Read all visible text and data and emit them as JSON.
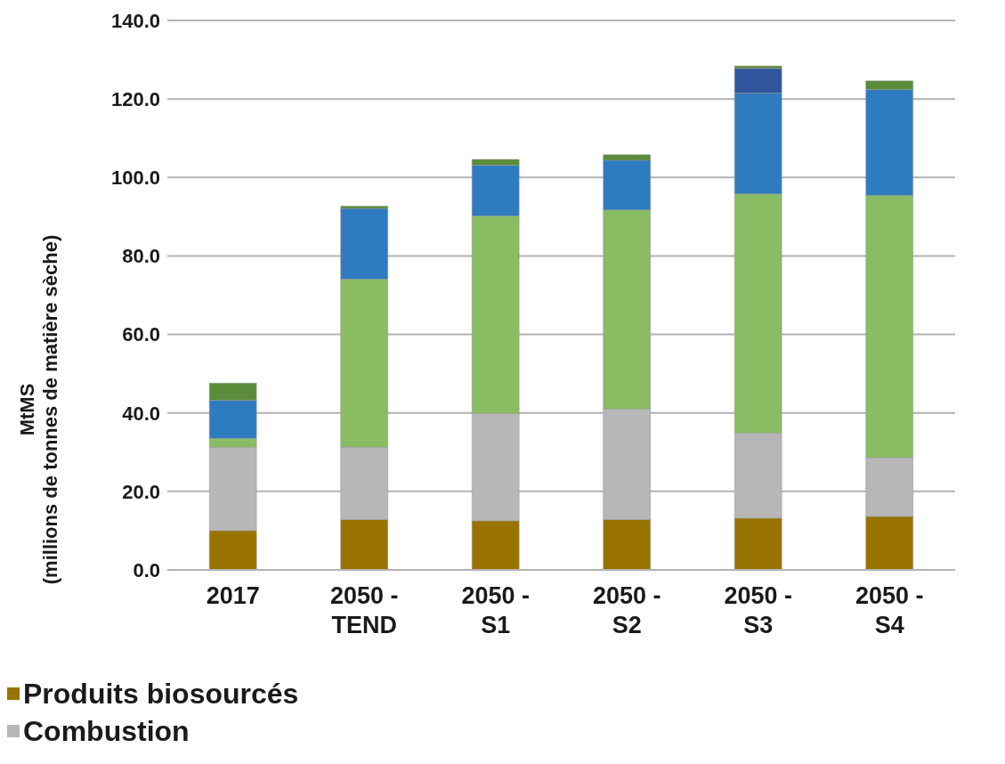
{
  "chart_data": {
    "type": "bar",
    "stacked": true,
    "ylabel": "MtMS\n(millions de tonnes de matière sèche)",
    "categories": [
      "2017",
      "2050 - TEND",
      "2050 - S1",
      "2050 - S2",
      "2050 - S3",
      "2050 - S4"
    ],
    "series": [
      {
        "name": "Produits biosourcés",
        "color": "#997300",
        "values": [
          10.0,
          12.8,
          12.5,
          12.8,
          13.2,
          13.6
        ]
      },
      {
        "name": "Combustion",
        "color": "#b7b7b7",
        "values": [
          21.3,
          18.5,
          27.4,
          28.2,
          21.7,
          15.0
        ]
      },
      {
        "color": "#8abd63",
        "values": [
          2.2,
          42.8,
          50.3,
          50.7,
          60.9,
          66.8
        ]
      },
      {
        "color": "#2e7bc0",
        "values": [
          9.7,
          18.0,
          12.9,
          12.7,
          25.7,
          27.0
        ]
      },
      {
        "color": "#30559c",
        "values": [
          0,
          0,
          0,
          0,
          6.3,
          0
        ]
      },
      {
        "color": "#5b8c3a",
        "values": [
          4.4,
          0.6,
          1.5,
          1.4,
          0.6,
          2.2
        ]
      }
    ],
    "ylim": [
      0,
      140
    ],
    "yticks": [
      {
        "value": 0,
        "label": "0.0"
      },
      {
        "value": 20,
        "label": "20.0"
      },
      {
        "value": 40,
        "label": "40.0"
      },
      {
        "value": 60,
        "label": "60.0"
      },
      {
        "value": 80,
        "label": "80.0"
      },
      {
        "value": 100,
        "label": "100.0"
      },
      {
        "value": 120,
        "label": "120.0"
      },
      {
        "value": 140,
        "label": "140.0"
      }
    ],
    "grid": "y",
    "legend": "bottom"
  }
}
